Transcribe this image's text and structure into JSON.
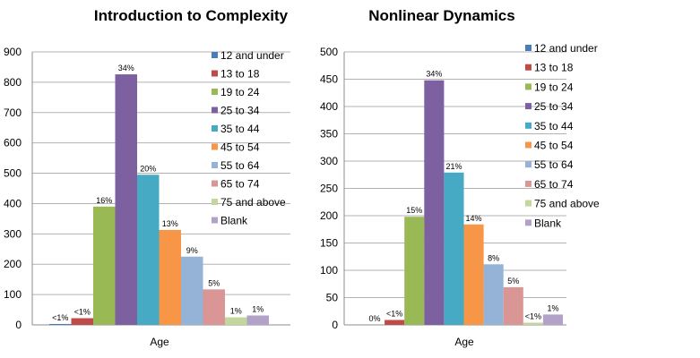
{
  "chart_data": [
    {
      "type": "bar",
      "title": "Introduction to Complexity",
      "xlabel": "Age",
      "ylabel": "",
      "ylim": [
        0,
        900
      ],
      "yticks": [
        0,
        100,
        200,
        300,
        400,
        500,
        600,
        700,
        800,
        900
      ],
      "grid": true,
      "legend": "right",
      "categories": [
        "12 and under",
        "13 to 18",
        "19 to 24",
        "25 to 34",
        "35 to 44",
        "45 to 54",
        "55 to 64",
        "65 to 74",
        "75 and above",
        "Blank"
      ],
      "values": [
        3,
        22,
        390,
        826,
        495,
        313,
        225,
        117,
        25,
        31
      ],
      "data_labels": [
        "<1%",
        "<1%",
        "16%",
        "34%",
        "20%",
        "13%",
        "9%",
        "5%",
        "1%",
        "1%"
      ]
    },
    {
      "type": "bar",
      "title": "Nonlinear Dynamics",
      "xlabel": "Age",
      "ylabel": "",
      "ylim": [
        0,
        500
      ],
      "yticks": [
        0,
        50,
        100,
        150,
        200,
        250,
        300,
        350,
        400,
        450,
        500
      ],
      "grid": true,
      "legend": "right",
      "categories": [
        "12 and under",
        "13 to 18",
        "19 to 24",
        "25 to 34",
        "35 to 44",
        "45 to 54",
        "55 to 64",
        "65 to 74",
        "75 and above",
        "Blank"
      ],
      "values": [
        0,
        9,
        198,
        448,
        279,
        184,
        111,
        69,
        4,
        19
      ],
      "data_labels": [
        "0%",
        "<1%",
        "15%",
        "34%",
        "21%",
        "14%",
        "8%",
        "5%",
        "<1%",
        "1%"
      ]
    }
  ],
  "colors": [
    "#4a7ebb",
    "#be4b48",
    "#98b954",
    "#7d60a0",
    "#46aac4",
    "#f79646",
    "#95b3d7",
    "#d99694",
    "#c3d69b",
    "#b3a2c7"
  ]
}
